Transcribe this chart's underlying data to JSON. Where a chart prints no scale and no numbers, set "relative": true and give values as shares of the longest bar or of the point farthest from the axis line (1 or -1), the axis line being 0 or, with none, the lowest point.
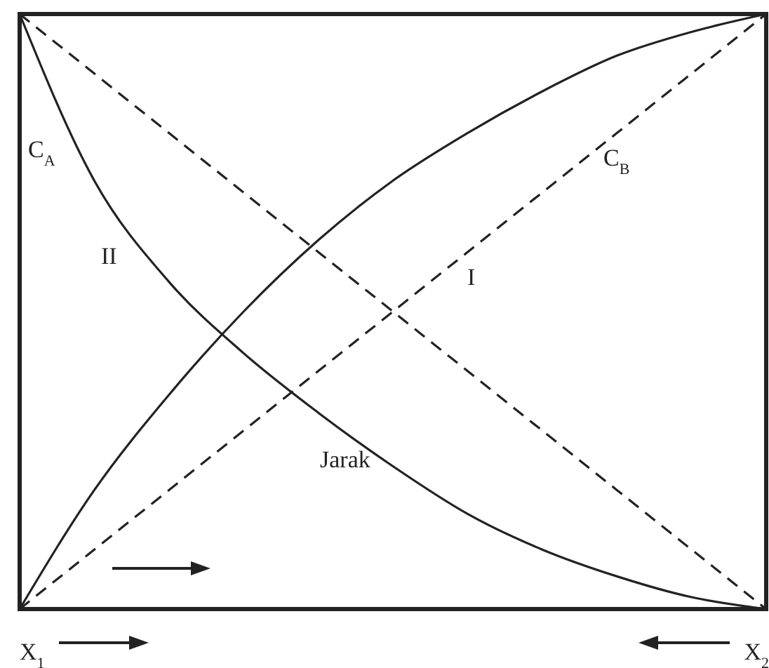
{
  "chart_data": {
    "type": "line",
    "relative": true,
    "categories": [
      null,
      null,
      null,
      null,
      null,
      null,
      null,
      null,
      null,
      null,
      null
    ],
    "series": [
      {
        "color": "#222222",
        "line_style": "solid",
        "values": [
          1,
          0.72,
          0.55,
          0.43,
          0.33,
          0.24,
          0.16,
          0.1,
          0.055,
          0.02,
          0
        ]
      },
      {
        "color": "#222222",
        "line_style": "solid",
        "values": [
          0,
          0.2,
          0.36,
          0.5,
          0.62,
          0.72,
          0.8,
          0.87,
          0.93,
          0.97,
          1
        ]
      },
      {
        "color": "#222222",
        "line_style": "dashed",
        "values": [
          1,
          0.9,
          0.8,
          0.7,
          0.6,
          0.5,
          0.4,
          0.3,
          0.2,
          0.1,
          0
        ]
      },
      {
        "color": "#222222",
        "line_style": "dashed",
        "values": [
          0,
          0.1,
          0.2,
          0.3,
          0.4,
          0.5,
          0.6,
          0.7,
          0.8,
          0.9,
          1
        ]
      }
    ],
    "annotations": [
      "C$_{A}$",
      "C$_{B}$",
      "I",
      "II",
      "Jarak",
      "X$_{1}$",
      "X$_{2}$"
    ]
  }
}
